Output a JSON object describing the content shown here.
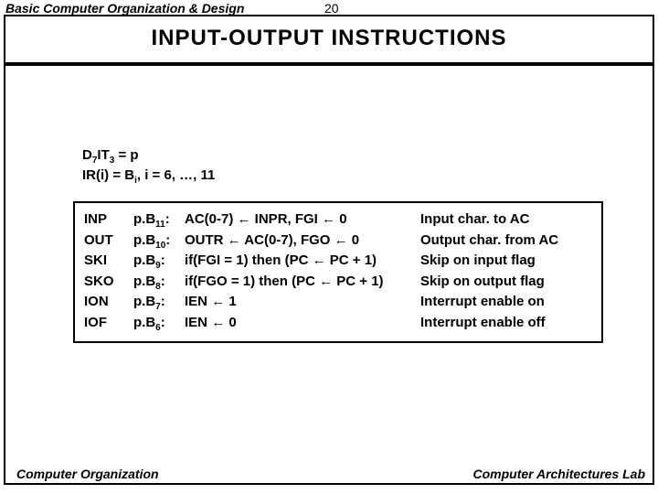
{
  "header": {
    "chapter": "Basic Computer Organization & Design",
    "page": "20"
  },
  "title": "INPUT-OUTPUT  INSTRUCTIONS",
  "conditions": {
    "line1_html": "D<sub>7</sub>IT<sub>3</sub> = p",
    "line2_html": "IR(i) = B<sub>i</sub>, i = 6, …, 11"
  },
  "instructions": [
    {
      "mnemonic": "INP",
      "signal_html": "p.B<sub>11</sub>:",
      "op_html": "AC(0-7) <span class='arrow'>←</span> INPR, FGI <span class='arrow'>←</span> 0",
      "desc": "Input char. to AC"
    },
    {
      "mnemonic": "OUT",
      "signal_html": "p.B<sub>10</sub>:",
      "op_html": "OUTR <span class='arrow'>←</span> AC(0-7), FGO <span class='arrow'>←</span> 0",
      "desc": "Output char. from AC"
    },
    {
      "mnemonic": "SKI",
      "signal_html": "p.B<sub>9</sub>:",
      "op_html": "if(FGI = 1) then (PC <span class='arrow'>←</span> PC + 1)",
      "desc": "Skip on input flag"
    },
    {
      "mnemonic": "SKO",
      "signal_html": "p.B<sub>8</sub>:",
      "op_html": "if(FGO = 1) then (PC <span class='arrow'>←</span> PC + 1)",
      "desc": "Skip on output flag"
    },
    {
      "mnemonic": "ION",
      "signal_html": "p.B<sub>7</sub>:",
      "op_html": "IEN <span class='arrow'>←</span> 1",
      "desc": "Interrupt enable on"
    },
    {
      "mnemonic": "IOF",
      "signal_html": "p.B<sub>6</sub>:",
      "op_html": "IEN <span class='arrow'>←</span> 0",
      "desc": "Interrupt enable off"
    }
  ],
  "footer": {
    "left": "Computer Organization",
    "right": "Computer Architectures Lab"
  }
}
